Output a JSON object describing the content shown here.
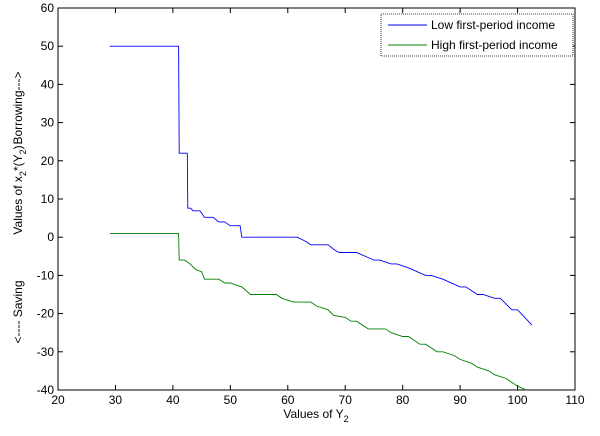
{
  "chart_data": {
    "type": "line",
    "xlabel": "Values of Y",
    "xlabel_sub": "2",
    "ylabel_parts": {
      "top": "Borrowing--->",
      "middle_prefix": "Values of x",
      "middle_sub": "2",
      "middle_suffix": "*(Y",
      "middle_sub2": "2",
      "middle_end": ")",
      "bottom": "<---- Saving"
    },
    "xlim": [
      20,
      110
    ],
    "ylim": [
      -40,
      60
    ],
    "xticks": [
      20,
      30,
      40,
      50,
      60,
      70,
      80,
      90,
      100,
      110
    ],
    "yticks": [
      -40,
      -30,
      -20,
      -10,
      0,
      10,
      20,
      30,
      40,
      50,
      60
    ],
    "grid": false,
    "legend_position": "top-right",
    "series": [
      {
        "name": "Low first-period income",
        "color": "#0000ff",
        "points": [
          [
            29,
            50
          ],
          [
            41,
            50
          ],
          [
            41.1,
            22
          ],
          [
            42.5,
            22
          ],
          [
            42.6,
            7.6
          ],
          [
            43.1,
            7.6
          ],
          [
            43.5,
            6.9
          ],
          [
            44.7,
            6.9
          ],
          [
            45.5,
            5.2
          ],
          [
            47,
            5.2
          ],
          [
            48,
            4
          ],
          [
            49,
            4
          ],
          [
            50,
            3
          ],
          [
            51.7,
            3
          ],
          [
            52,
            0
          ],
          [
            61.6,
            0
          ],
          [
            63,
            -1
          ],
          [
            64,
            -2
          ],
          [
            67,
            -2
          ],
          [
            68.3,
            -3.5
          ],
          [
            69,
            -4
          ],
          [
            72,
            -4
          ],
          [
            75,
            -6
          ],
          [
            76,
            -6
          ],
          [
            78,
            -7
          ],
          [
            79,
            -7
          ],
          [
            81,
            -8
          ],
          [
            84,
            -10
          ],
          [
            85,
            -10
          ],
          [
            87,
            -11
          ],
          [
            90,
            -13
          ],
          [
            91,
            -13
          ],
          [
            93,
            -15
          ],
          [
            94,
            -15
          ],
          [
            96,
            -16
          ],
          [
            97,
            -16
          ],
          [
            99,
            -19
          ],
          [
            100,
            -19
          ],
          [
            102.5,
            -23
          ]
        ]
      },
      {
        "name": "High first-period income",
        "color": "#008000",
        "points": [
          [
            29,
            1
          ],
          [
            41,
            1
          ],
          [
            41.1,
            -6
          ],
          [
            42,
            -6
          ],
          [
            43,
            -7
          ],
          [
            44,
            -8.5
          ],
          [
            45,
            -9
          ],
          [
            45.5,
            -11
          ],
          [
            48,
            -11
          ],
          [
            49,
            -12
          ],
          [
            50,
            -12
          ],
          [
            52,
            -13
          ],
          [
            53.5,
            -15
          ],
          [
            58,
            -15
          ],
          [
            59,
            -16
          ],
          [
            61,
            -17
          ],
          [
            64,
            -17
          ],
          [
            65,
            -18
          ],
          [
            67,
            -19
          ],
          [
            68,
            -20.5
          ],
          [
            70,
            -21
          ],
          [
            71,
            -22
          ],
          [
            72,
            -22
          ],
          [
            74,
            -24
          ],
          [
            77,
            -24
          ],
          [
            78,
            -25
          ],
          [
            80,
            -26
          ],
          [
            81,
            -26
          ],
          [
            83,
            -28
          ],
          [
            84,
            -28
          ],
          [
            86,
            -30
          ],
          [
            87,
            -30
          ],
          [
            89,
            -31
          ],
          [
            90,
            -32
          ],
          [
            92,
            -33
          ],
          [
            93,
            -34
          ],
          [
            95,
            -35
          ],
          [
            96,
            -36
          ],
          [
            98,
            -37
          ],
          [
            100,
            -39
          ],
          [
            101.5,
            -40
          ]
        ]
      }
    ]
  }
}
